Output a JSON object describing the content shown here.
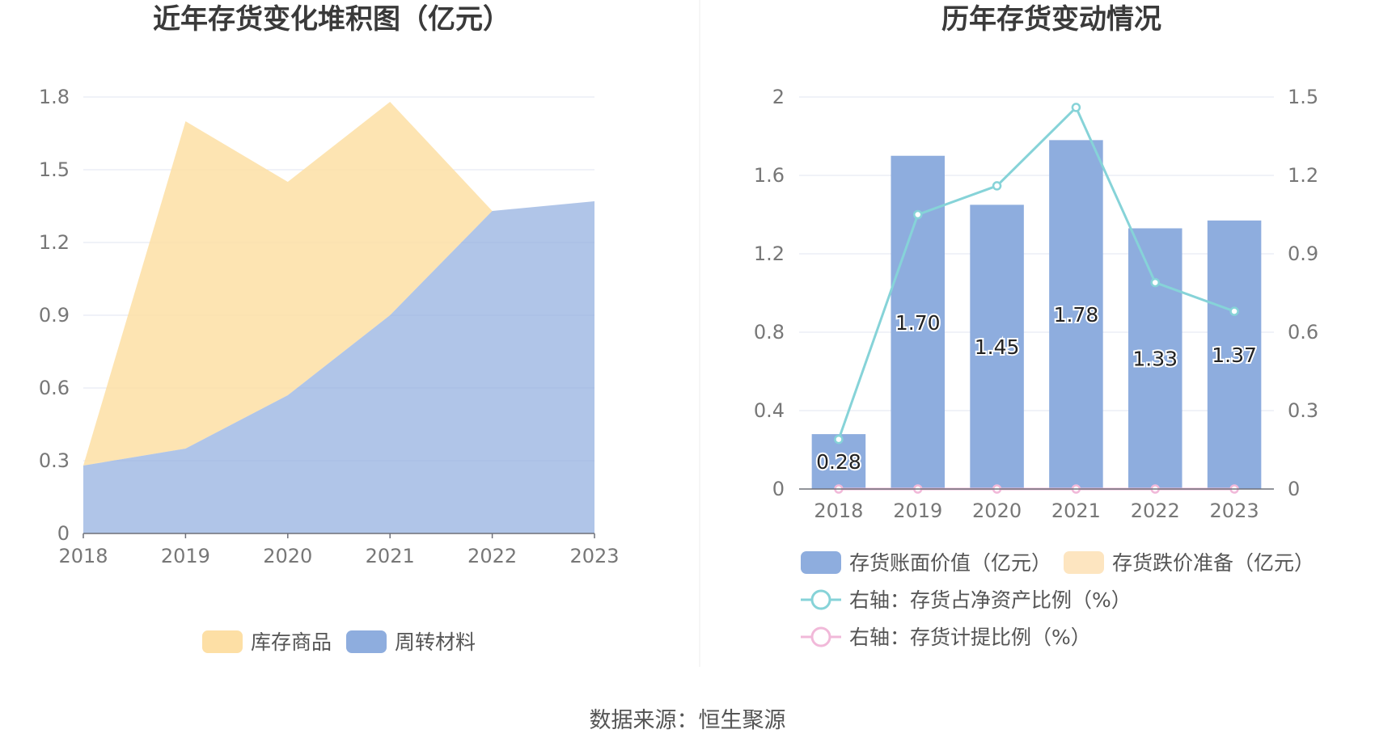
{
  "source": "数据来源：恒生聚源",
  "chart_data": [
    {
      "type": "area",
      "stacked": true,
      "title": "近年存货变化堆积图（亿元）",
      "categories": [
        "2018",
        "2019",
        "2020",
        "2021",
        "2022",
        "2023"
      ],
      "series": [
        {
          "name": "周转材料",
          "values": [
            0.28,
            0.35,
            0.57,
            0.9,
            1.33,
            1.37
          ],
          "color": "#8eadde"
        },
        {
          "name": "库存商品",
          "values": [
            0.0,
            1.35,
            0.88,
            0.88,
            0.0,
            0.0
          ],
          "color": "#fddfa5"
        }
      ],
      "yticks": [
        "0",
        "0.3",
        "0.6",
        "0.9",
        "1.2",
        "1.5",
        "1.8"
      ],
      "ylim": [
        0,
        1.8
      ],
      "legend": [
        "库存商品",
        "周转材料"
      ],
      "legend_position": "bottom",
      "grid": true
    },
    {
      "type": "bar",
      "title": "历年存货变动情况",
      "categories": [
        "2018",
        "2019",
        "2020",
        "2021",
        "2022",
        "2023"
      ],
      "series": [
        {
          "name": "存货账面价值（亿元）",
          "axis": "left",
          "type": "bar",
          "values": [
            0.28,
            1.7,
            1.45,
            1.78,
            1.33,
            1.37
          ],
          "labels": [
            "0.28",
            "1.70",
            "1.45",
            "1.78",
            "1.33",
            "1.37"
          ],
          "color": "#8eadde"
        },
        {
          "name": "存货跌价准备（亿元）",
          "axis": "left",
          "type": "bar",
          "values": [
            0,
            0,
            0,
            0,
            0,
            0
          ],
          "color": "#fde5c0"
        },
        {
          "name": "右轴：存货占净资产比例（%）",
          "axis": "right",
          "type": "line",
          "values": [
            0.19,
            1.05,
            1.16,
            1.46,
            0.79,
            0.68
          ],
          "color": "#86d3d8"
        },
        {
          "name": "右轴：存货计提比例（%）",
          "axis": "right",
          "type": "line",
          "values": [
            0,
            0,
            0,
            0,
            0,
            0
          ],
          "color": "#f1b9d9"
        }
      ],
      "yticks_left": [
        "0",
        "0.4",
        "0.8",
        "1.2",
        "1.6",
        "2"
      ],
      "ylim_left": [
        0,
        2
      ],
      "yticks_right": [
        "0",
        "0.3",
        "0.6",
        "0.9",
        "1.2",
        "1.5"
      ],
      "ylim_right": [
        0,
        1.5
      ],
      "legend_position": "bottom",
      "grid": true
    }
  ]
}
